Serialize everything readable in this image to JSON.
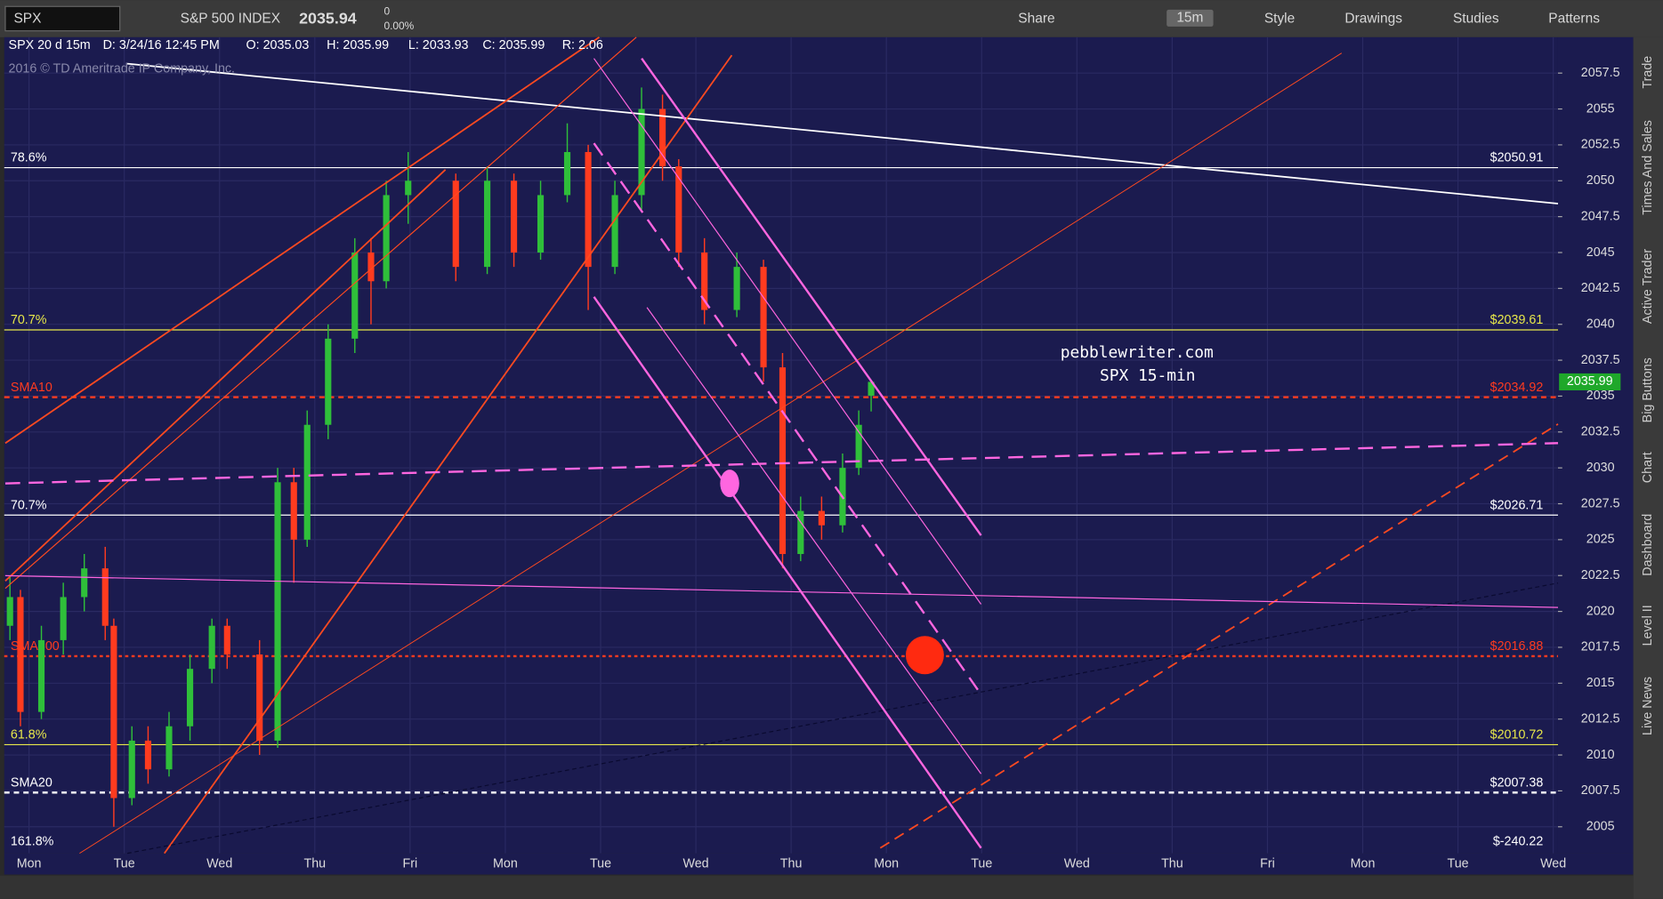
{
  "toolbar": {
    "symbol": "SPX",
    "name": "S&P 500 INDEX",
    "price": "2035.94",
    "change": "0",
    "change_pct": "0.00%",
    "share": "Share",
    "timeframe": "15m",
    "style": "Style",
    "drawings": "Drawings",
    "studies": "Studies",
    "patterns": "Patterns"
  },
  "header": {
    "study": "SPX 20 d 15m",
    "date": "D: 3/24/16 12:45 PM",
    "open": "O: 2035.03",
    "high": "H: 2035.99",
    "low": "L: 2033.93",
    "close": "C: 2035.99",
    "range": "R: 2.06",
    "copyright": "2016 © TD Ameritrade IP Company, Inc."
  },
  "side_tabs": [
    "Trade",
    "Times And Sales",
    "Active Trader",
    "Big Buttons",
    "Chart",
    "Dashboard",
    "Level II",
    "Live News"
  ],
  "chart_data": {
    "type": "candlestick",
    "annotations": [
      "pebblewriter.com",
      "SPX 15-min"
    ],
    "up_color": "#2fbf3a",
    "down_color": "#ff3b1f",
    "x": [
      -0.2,
      -0.09,
      0.13,
      0.36,
      0.58,
      0.8,
      0.89,
      1.08,
      1.25,
      1.47,
      1.69,
      1.92,
      2.08,
      2.42,
      2.61,
      2.78,
      2.92,
      3.14,
      3.42,
      3.59,
      3.75,
      3.98,
      4.48,
      4.81,
      5.09,
      5.37,
      5.65,
      5.87,
      6.15,
      6.43,
      6.65,
      6.82,
      7.09,
      7.43,
      7.71,
      7.91,
      8.1,
      8.32,
      8.54,
      8.71,
      8.84
    ],
    "open": [
      2019,
      2021,
      2013,
      2018,
      2021,
      2023,
      2019,
      2007,
      2011,
      2009,
      2012,
      2016,
      2019,
      2017,
      2011,
      2029,
      2025,
      2033,
      2039,
      2045,
      2043,
      2049,
      2050,
      2044,
      2050,
      2045,
      2049,
      2052,
      2044,
      2049,
      2055,
      2051,
      2045,
      2041,
      2044,
      2037,
      2024,
      2027,
      2026,
      2030,
      2035.03
    ],
    "high": [
      2022.5,
      2021.5,
      2019,
      2022,
      2024,
      2024.5,
      2019.5,
      2012,
      2012,
      2013,
      2017,
      2019.5,
      2019.5,
      2018,
      2030,
      2030,
      2034,
      2040,
      2046,
      2046,
      2050,
      2052,
      2050.5,
      2051,
      2050.5,
      2050,
      2054,
      2052.5,
      2050,
      2056.5,
      2056,
      2051.5,
      2046,
      2045,
      2044.5,
      2038,
      2028,
      2028,
      2031,
      2034,
      2035.99
    ],
    "low": [
      2018,
      2012,
      2012.5,
      2017,
      2020,
      2018,
      2005,
      2006.5,
      2008,
      2008.5,
      2011,
      2015,
      2016,
      2010,
      2010.5,
      2022,
      2024.5,
      2032,
      2038,
      2040,
      2042.5,
      2047,
      2043,
      2043.5,
      2044,
      2044.5,
      2048.5,
      2041,
      2043.5,
      2048,
      2050,
      2044,
      2040,
      2040.5,
      2036,
      2023,
      2023.5,
      2025,
      2025.5,
      2029.5,
      2033.93
    ],
    "close": [
      2021,
      2013,
      2018,
      2021,
      2023,
      2019,
      2007,
      2011,
      2009,
      2012,
      2016,
      2019,
      2017,
      2011,
      2029,
      2025,
      2033,
      2039,
      2045,
      2043,
      2049,
      2050,
      2044,
      2050,
      2045,
      2049,
      2052,
      2044,
      2049,
      2055,
      2051,
      2045,
      2041,
      2044,
      2037,
      2024,
      2027,
      2026,
      2030,
      2033,
      2035.99
    ],
    "xlim": [
      -0.26,
      16.05
    ],
    "xticks": [
      {
        "value": 0,
        "label": "Mon"
      },
      {
        "value": 1,
        "label": "Tue"
      },
      {
        "value": 2,
        "label": "Wed"
      },
      {
        "value": 3,
        "label": "Thu"
      },
      {
        "value": 4,
        "label": "Fri"
      },
      {
        "value": 5,
        "label": "Mon"
      },
      {
        "value": 6,
        "label": "Tue"
      },
      {
        "value": 7,
        "label": "Wed"
      },
      {
        "value": 8,
        "label": "Thu"
      },
      {
        "value": 9,
        "label": "Mon"
      },
      {
        "value": 10,
        "label": "Tue"
      },
      {
        "value": 11,
        "label": "Wed"
      },
      {
        "value": 12,
        "label": "Thu"
      },
      {
        "value": 13,
        "label": "Fri"
      },
      {
        "value": 14,
        "label": "Mon"
      },
      {
        "value": 15,
        "label": "Tue"
      },
      {
        "value": 16,
        "label": "Wed"
      }
    ],
    "ylim": [
      2003.15,
      2060.0
    ],
    "yticks": [
      2005,
      2007.5,
      2010,
      2012.5,
      2015,
      2017.5,
      2020,
      2022.5,
      2025,
      2027.5,
      2030,
      2032.5,
      2035,
      2037.5,
      2040,
      2042.5,
      2045,
      2047.5,
      2050,
      2052.5,
      2055,
      2057.5
    ],
    "last_price": 2035.99,
    "last_price_color": "#1fa82a",
    "levels": [
      {
        "name": "78.6%",
        "value": 2050.91,
        "price_label": "$2050.91",
        "color": "#ffffff",
        "style": "solid"
      },
      {
        "name": "70.7%",
        "value": 2039.61,
        "price_label": "$2039.61",
        "color": "#e8e84a",
        "style": "solid"
      },
      {
        "name": "SMA10",
        "value": 2034.92,
        "price_label": "$2034.92",
        "color": "#ff3b1f",
        "style": "dashed"
      },
      {
        "name": "70.7%",
        "value": 2026.71,
        "price_label": "$2026.71",
        "color": "#ffffff",
        "style": "solid"
      },
      {
        "name": "SMA200",
        "value": 2016.88,
        "price_label": "$2016.88",
        "color": "#ff3b1f",
        "style": "dotted"
      },
      {
        "name": "61.8%",
        "value": 2010.72,
        "price_label": "$2010.72",
        "color": "#e8e84a",
        "style": "solid"
      },
      {
        "name": "SMA20",
        "value": 2007.38,
        "price_label": "$2007.38",
        "color": "#ffffff",
        "style": "dashed"
      },
      {
        "name": "161.8%",
        "value": -240.22,
        "price_label": "$-240.22",
        "color": "#ffffff",
        "style": "solid"
      }
    ],
    "grid": true
  }
}
